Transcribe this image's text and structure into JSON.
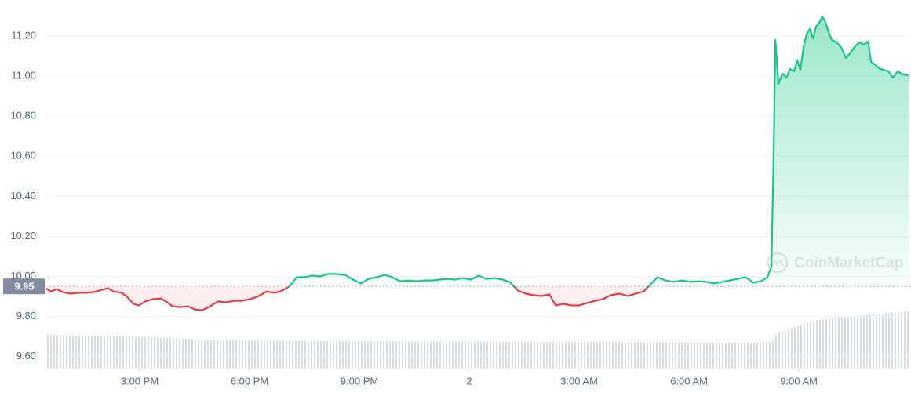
{
  "chart_data": {
    "type": "line",
    "watermark": "CoinMarketCap",
    "baseline": 9.95,
    "up_color": "#16c784",
    "down_color": "#ea3943",
    "grid": true,
    "xlim": [
      0.43,
      24.04
    ],
    "ylim": [
      9.54,
      11.38
    ],
    "xticks": [
      {
        "value": 3,
        "label": "3:00 PM"
      },
      {
        "value": 6,
        "label": "6:00 PM"
      },
      {
        "value": 9,
        "label": "9:00 PM"
      },
      {
        "value": 12,
        "label": "2"
      },
      {
        "value": 15,
        "label": "3:00 AM"
      },
      {
        "value": 18,
        "label": "6:00 AM"
      },
      {
        "value": 21,
        "label": "9:00 AM"
      }
    ],
    "yticks": [
      {
        "value": 9.6,
        "label": "9.60"
      },
      {
        "value": 9.8,
        "label": "9.80"
      },
      {
        "value": 10,
        "label": "10.00"
      },
      {
        "value": 10.2,
        "label": "10.20"
      },
      {
        "value": 10.4,
        "label": "10.40"
      },
      {
        "value": 10.6,
        "label": "10.60"
      },
      {
        "value": 10.8,
        "label": "10.80"
      },
      {
        "value": 11,
        "label": "11.00"
      },
      {
        "value": 11.2,
        "label": "11.20"
      }
    ],
    "x": [
      0.43,
      0.58,
      0.73,
      0.9,
      1.11,
      1.33,
      1.54,
      1.76,
      1.97,
      2.14,
      2.29,
      2.51,
      2.68,
      2.83,
      2.98,
      3.15,
      3.36,
      3.58,
      3.75,
      3.9,
      4.11,
      4.33,
      4.5,
      4.71,
      4.93,
      5.14,
      5.36,
      5.57,
      5.79,
      6.0,
      6.21,
      6.47,
      6.69,
      6.9,
      7.11,
      7.29,
      7.5,
      7.71,
      7.93,
      8.14,
      8.36,
      8.61,
      8.83,
      9.04,
      9.26,
      9.47,
      9.69,
      9.9,
      10.11,
      10.33,
      10.54,
      10.76,
      10.97,
      11.19,
      11.4,
      11.61,
      11.83,
      12.04,
      12.26,
      12.47,
      12.69,
      12.9,
      13.11,
      13.33,
      13.54,
      13.76,
      13.97,
      14.19,
      14.36,
      14.57,
      14.79,
      15.0,
      15.21,
      15.43,
      15.64,
      15.86,
      16.11,
      16.33,
      16.54,
      16.76,
      16.93,
      17.14,
      17.36,
      17.57,
      17.83,
      18.04,
      18.26,
      18.47,
      18.69,
      18.9,
      19.11,
      19.33,
      19.54,
      19.76,
      19.97,
      20.14,
      20.25,
      20.31,
      20.36,
      20.44,
      20.55,
      20.66,
      20.76,
      20.87,
      20.96,
      21.04,
      21.13,
      21.21,
      21.3,
      21.39,
      21.47,
      21.56,
      21.64,
      21.73,
      21.81,
      21.9,
      22.03,
      22.16,
      22.29,
      22.41,
      22.54,
      22.67,
      22.76,
      22.89,
      22.97,
      23.1,
      23.19,
      23.31,
      23.44,
      23.57,
      23.7,
      23.83,
      24.0
    ],
    "values": [
      9.941,
      9.925,
      9.937,
      9.922,
      9.914,
      9.918,
      9.918,
      9.922,
      9.933,
      9.941,
      9.925,
      9.918,
      9.894,
      9.863,
      9.855,
      9.875,
      9.886,
      9.89,
      9.871,
      9.851,
      9.847,
      9.851,
      9.835,
      9.831,
      9.851,
      9.875,
      9.871,
      9.878,
      9.878,
      9.886,
      9.898,
      9.925,
      9.918,
      9.929,
      9.953,
      9.996,
      9.996,
      10.004,
      10.0,
      10.012,
      10.012,
      10.008,
      9.984,
      9.965,
      9.988,
      9.996,
      10.008,
      9.996,
      9.976,
      9.98,
      9.976,
      9.98,
      9.98,
      9.984,
      9.988,
      9.984,
      9.992,
      9.984,
      10.004,
      9.988,
      9.992,
      9.984,
      9.973,
      9.929,
      9.914,
      9.906,
      9.902,
      9.91,
      9.855,
      9.863,
      9.855,
      9.855,
      9.867,
      9.878,
      9.886,
      9.906,
      9.914,
      9.902,
      9.914,
      9.925,
      9.957,
      9.996,
      9.98,
      9.973,
      9.98,
      9.973,
      9.976,
      9.973,
      9.965,
      9.973,
      9.98,
      9.988,
      9.996,
      9.969,
      9.976,
      9.996,
      10.051,
      10.6,
      11.18,
      10.961,
      11.012,
      10.992,
      11.035,
      11.024,
      11.078,
      11.031,
      11.149,
      11.208,
      11.235,
      11.188,
      11.247,
      11.267,
      11.298,
      11.267,
      11.22,
      11.18,
      11.169,
      11.141,
      11.09,
      11.118,
      11.149,
      11.169,
      11.157,
      11.173,
      11.071,
      11.055,
      11.039,
      11.031,
      11.024,
      10.992,
      11.024,
      11.008,
      11.004
    ]
  }
}
